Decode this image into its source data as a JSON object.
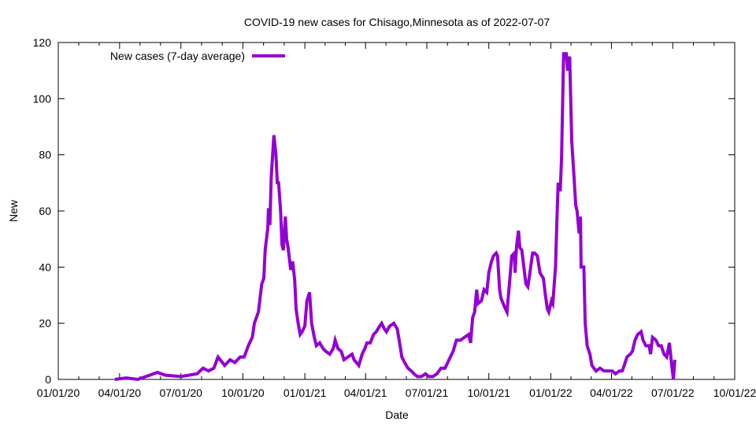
{
  "chart_data": {
    "type": "line",
    "title": "COVID-19 new cases for Chisago,Minnesota as of 2022-07-07",
    "xlabel": "Date",
    "ylabel": "New",
    "x_unit": "days since 2020-01-01",
    "xlim": [
      0,
      1004
    ],
    "ylim": [
      0,
      120
    ],
    "grid": false,
    "legend_position": "top-left",
    "yticks": [
      0,
      20,
      40,
      60,
      80,
      100,
      120
    ],
    "xticks": [
      {
        "day": 0,
        "label": "01/01/20"
      },
      {
        "day": 91,
        "label": "04/01/20"
      },
      {
        "day": 182,
        "label": "07/01/20"
      },
      {
        "day": 274,
        "label": "10/01/20"
      },
      {
        "day": 366,
        "label": "01/01/21"
      },
      {
        "day": 456,
        "label": "04/01/21"
      },
      {
        "day": 547,
        "label": "07/01/21"
      },
      {
        "day": 639,
        "label": "10/01/21"
      },
      {
        "day": 731,
        "label": "01/01/22"
      },
      {
        "day": 821,
        "label": "04/01/22"
      },
      {
        "day": 912,
        "label": "07/01/22"
      },
      {
        "day": 1004,
        "label": "10/01/22"
      }
    ],
    "series": [
      {
        "name": "New cases (7-day average)",
        "color": "#9400d3",
        "x": [
          84,
          101,
          118,
          130,
          147,
          159,
          182,
          206,
          215,
          223,
          231,
          237,
          247,
          255,
          262,
          270,
          276,
          282,
          288,
          291,
          297,
          302,
          305,
          307,
          311,
          312,
          314,
          316,
          320,
          323,
          325,
          327,
          330,
          332,
          334,
          337,
          339,
          341,
          345,
          348,
          351,
          353,
          356,
          359,
          362,
          366,
          369,
          373,
          376,
          380,
          383,
          388,
          393,
          397,
          403,
          408,
          411,
          415,
          420,
          424,
          430,
          436,
          439,
          446,
          451,
          455,
          458,
          463,
          468,
          472,
          477,
          480,
          484,
          487,
          492,
          498,
          503,
          506,
          510,
          514,
          519,
          524,
          528,
          533,
          539,
          545,
          550,
          556,
          562,
          568,
          574,
          580,
          586,
          591,
          597,
          603,
          609,
          612,
          615,
          618,
          621,
          623,
          628,
          632,
          636,
          639,
          643,
          646,
          650,
          652,
          655,
          657,
          662,
          666,
          670,
          673,
          677,
          678,
          680,
          683,
          685,
          688,
          691,
          694,
          697,
          700,
          704,
          707,
          711,
          713,
          715,
          720,
          723,
          726,
          728,
          732,
          734,
          738,
          740,
          742,
          745,
          747,
          750,
          754,
          756,
          759,
          762,
          766,
          768,
          770,
          773,
          775,
          776,
          780,
          782,
          785,
          789,
          792,
          798,
          804,
          810,
          816,
          822,
          827,
          833,
          837,
          840,
          844,
          849,
          852,
          856,
          860,
          865,
          868,
          872,
          877,
          879,
          882,
          887,
          891,
          895,
          899,
          903,
          907,
          910,
          913,
          915
        ],
        "y": [
          0,
          0.5,
          0,
          1,
          2.5,
          1.5,
          1,
          2,
          4,
          3,
          4,
          8,
          5,
          7,
          6,
          8,
          8,
          12,
          15,
          20,
          24,
          34,
          36,
          46,
          54,
          61,
          55,
          72,
          87,
          80,
          70,
          70,
          60,
          48,
          46,
          58,
          50,
          47,
          39,
          42,
          35,
          25,
          20,
          16,
          17,
          19,
          28,
          31,
          20,
          15,
          12,
          13,
          11,
          10,
          9,
          11,
          14,
          11,
          10,
          7,
          8,
          9,
          7,
          5,
          9,
          11,
          13,
          13,
          16,
          17,
          19,
          20,
          18,
          17,
          19,
          20,
          18,
          14,
          8,
          6,
          4,
          3,
          2,
          1,
          1,
          2,
          1,
          1,
          2,
          4,
          4,
          7,
          10,
          14,
          14,
          15,
          16,
          13,
          22,
          24,
          32,
          27,
          28,
          32,
          31,
          38,
          42,
          44,
          45,
          44,
          32,
          29,
          26,
          24,
          35,
          44,
          45,
          38,
          47,
          53,
          47,
          46,
          40,
          34,
          33,
          38,
          45,
          45,
          44,
          41,
          38,
          36,
          30,
          25,
          24,
          28,
          27,
          40,
          56,
          70,
          67,
          79,
          116,
          116,
          110,
          115,
          85,
          70,
          62,
          60,
          52,
          58,
          40,
          40,
          20,
          12,
          9,
          5,
          3,
          4,
          3,
          3,
          3,
          2,
          3,
          3,
          5,
          8,
          9,
          10,
          14,
          16,
          17,
          14,
          12,
          12,
          9,
          15,
          14,
          12,
          12,
          9,
          8,
          13,
          6,
          0,
          7
        ]
      }
    ]
  }
}
